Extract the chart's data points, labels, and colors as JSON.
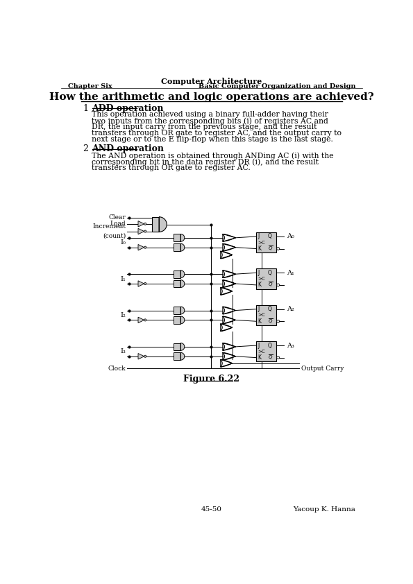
{
  "page_title": "Computer Architecture",
  "chapter_left": "Chapter Six",
  "chapter_right": "Basic Computer Organization and Design",
  "main_heading": "How the arithmetic and logic operations are achieved?",
  "section1_num": "1",
  "section1_title": "ADD operation",
  "section1_text_lines": [
    "This operation achieved using a binary full-adder having their",
    "two inputs from the corresponding bits (i) of registers AC and",
    "DR, the input carry from the previous stage, and the result",
    "transfers through OR gate to register AC, and the output carry to",
    "next stage or to the E flip-flop when this stage is the last stage."
  ],
  "section2_num": "2",
  "section2_title": "AND operation",
  "section2_text_lines": [
    "The AND operation is obtained through ANDing AC (i) with the",
    "corresponding bit in the data register DR (i), and the result",
    "transfers through OR gate to register AC."
  ],
  "figure_label": "Figure 6.22",
  "page_num": "45-50",
  "author": "Yacoup K. Hanna",
  "bg_color": "#ffffff",
  "text_color": "#000000",
  "gate_fill": "#c8c8c8",
  "gate_edge": "#000000"
}
